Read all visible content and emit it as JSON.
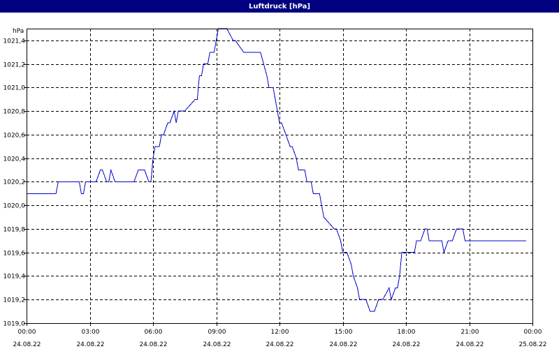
{
  "window": {
    "title": "Luftdruck [hPa]"
  },
  "chart_data": {
    "type": "line",
    "title": "Luftdruck [hPa]",
    "ylabel": "hPa",
    "xlabel": "",
    "xlim": [
      0,
      24
    ],
    "ylim": [
      1019.0,
      1021.5
    ],
    "y_ticks": [
      1019.0,
      1019.2,
      1019.4,
      1019.6,
      1019.8,
      1020.0,
      1020.2,
      1020.4,
      1020.6,
      1020.8,
      1021.0,
      1021.2,
      1021.4
    ],
    "y_tick_labels": [
      "1019,0",
      "1019,2",
      "1019,4",
      "1019,6",
      "1019,8",
      "1020,0",
      "1020,2",
      "1020,4",
      "1020,6",
      "1020,8",
      "1021,0",
      "1021,2",
      "1021,4"
    ],
    "x_ticks": [
      0,
      3,
      6,
      9,
      12,
      15,
      18,
      21,
      24
    ],
    "x_tick_labels": [
      {
        "time": "00:00",
        "date": "24.08.22"
      },
      {
        "time": "03:00",
        "date": "24.08.22"
      },
      {
        "time": "06:00",
        "date": "24.08.22"
      },
      {
        "time": "09:00",
        "date": "24.08.22"
      },
      {
        "time": "12:00",
        "date": "24.08.22"
      },
      {
        "time": "15:00",
        "date": "24.08.22"
      },
      {
        "time": "18:00",
        "date": "24.08.22"
      },
      {
        "time": "21:00",
        "date": "24.08.22"
      },
      {
        "time": "00:00",
        "date": "25.08.22"
      }
    ],
    "grid": true,
    "line_color": "#0000cc",
    "series": [
      {
        "x": [
          0.0,
          1.4,
          1.5,
          2.5,
          2.6,
          2.7,
          2.8,
          3.3,
          3.5,
          3.6,
          3.8,
          3.9,
          4.0,
          4.2,
          4.4,
          5.1,
          5.3,
          5.6,
          5.8,
          5.9,
          6.0,
          6.1,
          6.2,
          6.3,
          6.4,
          6.5,
          6.7,
          6.8,
          7.0,
          7.1,
          7.2,
          7.3,
          7.4,
          7.5,
          8.0,
          8.1,
          8.2,
          8.3,
          8.4,
          8.6,
          8.7,
          8.8,
          8.9,
          9.0,
          9.1,
          9.2,
          9.3,
          9.5,
          9.8,
          9.9,
          10.3,
          10.5,
          11.1,
          11.4,
          11.5,
          11.7,
          11.8,
          11.9,
          12.0,
          12.1,
          12.3,
          12.5,
          12.6,
          12.8,
          12.9,
          13.0,
          13.2,
          13.3,
          13.5,
          13.6,
          13.8,
          13.9,
          14.0,
          14.1,
          14.6,
          14.7,
          14.9,
          15.0,
          15.2,
          15.4,
          15.5,
          15.7,
          15.8,
          16.0,
          16.1,
          16.3,
          16.5,
          16.7,
          16.9,
          17.2,
          17.3,
          17.5,
          17.6,
          17.7,
          17.8,
          18.0,
          18.4,
          18.5,
          18.6,
          18.7,
          18.9,
          19.0,
          19.1,
          19.2,
          19.3,
          19.5,
          19.6,
          19.7,
          19.8,
          20.0,
          20.2,
          20.4,
          20.6,
          20.7,
          20.8,
          20.9,
          21.1,
          22.2,
          22.3,
          22.4,
          22.5,
          22.6,
          22.8,
          22.9,
          23.0,
          23.2,
          23.3,
          23.4,
          23.5,
          23.6,
          23.7
        ],
        "y": [
          1020.1,
          1020.1,
          1020.2,
          1020.2,
          1020.1,
          1020.1,
          1020.2,
          1020.2,
          1020.3,
          1020.3,
          1020.2,
          1020.2,
          1020.3,
          1020.2,
          1020.2,
          1020.2,
          1020.3,
          1020.3,
          1020.2,
          1020.2,
          1020.4,
          1020.5,
          1020.5,
          1020.5,
          1020.6,
          1020.6,
          1020.7,
          1020.7,
          1020.8,
          1020.7,
          1020.8,
          1020.8,
          1020.8,
          1020.8,
          1020.9,
          1020.9,
          1021.1,
          1021.1,
          1021.2,
          1021.2,
          1021.3,
          1021.3,
          1021.3,
          1021.4,
          1021.5,
          1021.5,
          1021.5,
          1021.5,
          1021.4,
          1021.4,
          1021.3,
          1021.3,
          1021.3,
          1021.1,
          1021.0,
          1021.0,
          1020.9,
          1020.8,
          1020.7,
          1020.7,
          1020.6,
          1020.5,
          1020.5,
          1020.4,
          1020.3,
          1020.3,
          1020.3,
          1020.2,
          1020.2,
          1020.1,
          1020.1,
          1020.1,
          1020.0,
          1019.9,
          1019.8,
          1019.8,
          1019.7,
          1019.6,
          1019.6,
          1019.5,
          1019.4,
          1019.3,
          1019.2,
          1019.2,
          1019.2,
          1019.1,
          1019.1,
          1019.2,
          1019.2,
          1019.3,
          1019.2,
          1019.3,
          1019.3,
          1019.4,
          1019.6,
          1019.6,
          1019.6,
          1019.7,
          1019.7,
          1019.7,
          1019.8,
          1019.8,
          1019.7,
          1019.7,
          1019.7,
          1019.7,
          1019.7,
          1019.7,
          1019.6,
          1019.7,
          1019.7,
          1019.8,
          1019.8,
          1019.8,
          1019.7,
          1019.7,
          1019.7,
          1019.7,
          1019.7,
          1019.7,
          1019.7,
          1019.7,
          1019.7,
          1019.7,
          1019.7,
          1019.7,
          1019.7,
          1019.7,
          1019.7,
          1019.7,
          1019.7
        ]
      }
    ]
  }
}
